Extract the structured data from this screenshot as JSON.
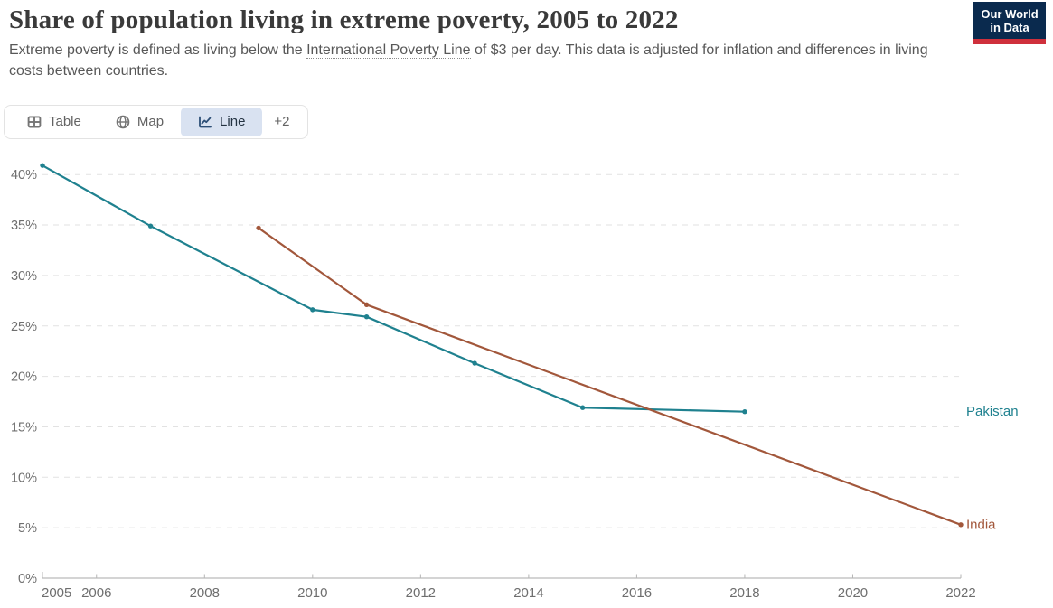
{
  "header": {
    "title": "Share of population living in extreme poverty, 2005 to 2022",
    "subtitle_pre": "Extreme poverty is defined as living below the ",
    "subtitle_link": "International Poverty Line",
    "subtitle_post": " of $3 per day. This data is adjusted for inflation and differences in living costs between countries."
  },
  "logo": {
    "line1": "Our World",
    "line2": "in Data",
    "bg_color": "#0a2a4e",
    "accent_color": "#cf303c"
  },
  "tabs": [
    {
      "label": "Table",
      "icon": "table-icon",
      "active": false
    },
    {
      "label": "Map",
      "icon": "globe-icon",
      "active": false
    },
    {
      "label": "Line",
      "icon": "line-chart-icon",
      "active": true
    },
    {
      "label": "+2",
      "icon": "",
      "active": false
    }
  ],
  "chart_data": {
    "type": "line",
    "title": "Share of population living in extreme poverty, 2005 to 2022",
    "xlabel": "",
    "ylabel": "",
    "xlim": [
      2005,
      2022
    ],
    "ylim": [
      0,
      40
    ],
    "grid": "horizontal-dashed",
    "legend_position": "inline-right-labels",
    "x_ticks": [
      2005,
      2006,
      2008,
      2010,
      2012,
      2014,
      2016,
      2018,
      2020,
      2022
    ],
    "y_ticks": [
      0,
      5,
      10,
      15,
      20,
      25,
      30,
      35,
      40
    ],
    "y_tick_labels": [
      "0%",
      "5%",
      "10%",
      "15%",
      "20%",
      "25%",
      "30%",
      "35%",
      "40%"
    ],
    "axis_label_color": "#6e6e6e",
    "gridline_color": "#e2e2e2",
    "series": [
      {
        "name": "Pakistan",
        "color": "#1f818f",
        "points": [
          [
            2005,
            40.9
          ],
          [
            2007,
            34.9
          ],
          [
            2010,
            26.6
          ],
          [
            2011,
            25.9
          ],
          [
            2013,
            21.3
          ],
          [
            2015,
            16.9
          ],
          [
            2018,
            16.5
          ]
        ]
      },
      {
        "name": "India",
        "color": "#a2573b",
        "points": [
          [
            2009,
            34.7
          ],
          [
            2011,
            27.1
          ],
          [
            2022,
            5.3
          ]
        ]
      }
    ]
  }
}
